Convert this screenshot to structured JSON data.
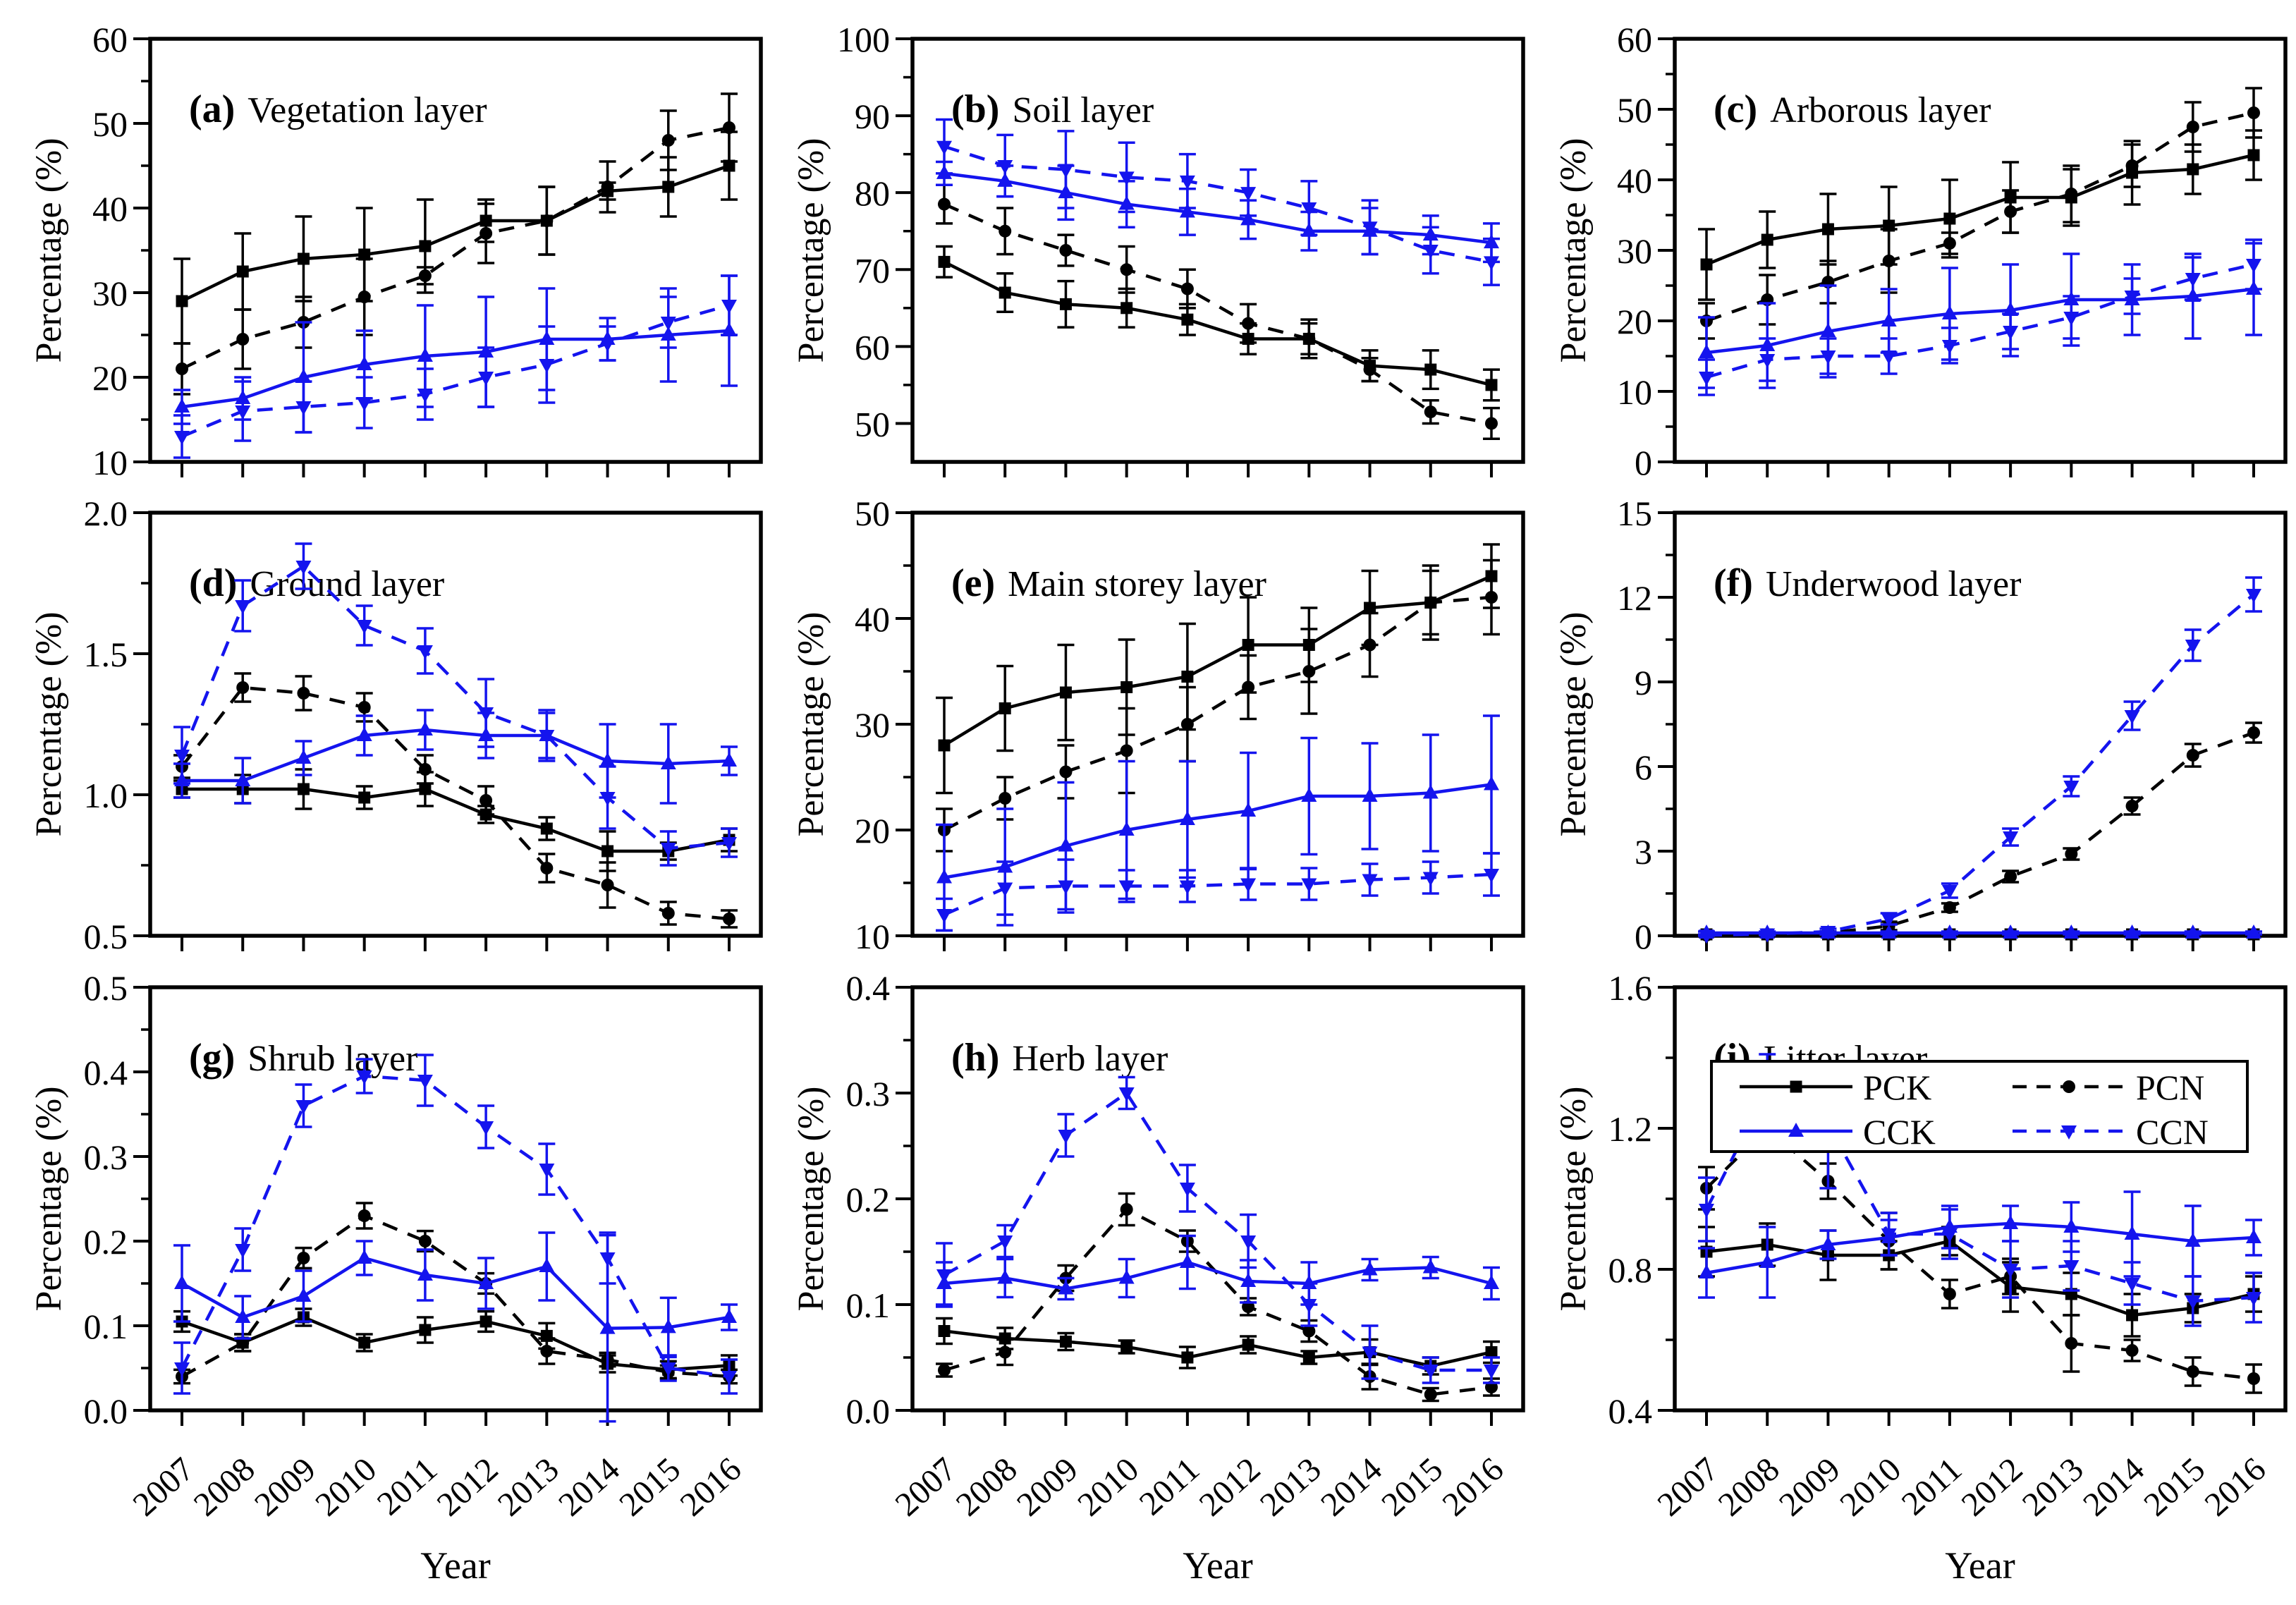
{
  "figure": {
    "x_axis_label": "Year",
    "y_axis_label": "Percentage  (%)",
    "colors": {
      "black": "#000000",
      "blue": "#1414ee",
      "background": "#ffffff"
    },
    "years": [
      2007,
      2008,
      2009,
      2010,
      2011,
      2012,
      2013,
      2014,
      2015,
      2016
    ],
    "series_meta": [
      {
        "key": "PCK",
        "label": "PCK",
        "color": "black",
        "dash": "solid",
        "marker": "square"
      },
      {
        "key": "PCN",
        "label": "PCN",
        "color": "black",
        "dash": "dashed",
        "marker": "circle"
      },
      {
        "key": "CCK",
        "label": "CCK",
        "color": "blue",
        "dash": "solid",
        "marker": "triangle-up"
      },
      {
        "key": "CCN",
        "label": "CCN",
        "color": "blue",
        "dash": "dashed",
        "marker": "triangle-down"
      }
    ],
    "legend": {
      "entries": [
        "PCK",
        "PCN",
        "CCK",
        "CCN"
      ],
      "location": "panel-i-top-right"
    }
  },
  "chart_data": [
    {
      "id": "a",
      "tag": "(a)",
      "title": "Vegetation layer",
      "type": "line",
      "ylim": [
        10,
        60
      ],
      "yticks": [
        10,
        20,
        30,
        40,
        50,
        60
      ],
      "ydecimals": 0,
      "series": {
        "PCK": {
          "values": [
            29,
            32.5,
            34,
            34.5,
            35.5,
            38.5,
            38.5,
            42,
            42.5,
            45
          ],
          "err": [
            5,
            4.5,
            5,
            5.5,
            5.5,
            2.5,
            4,
            1,
            3.5,
            4
          ]
        },
        "PCN": {
          "values": [
            21,
            24.5,
            26.5,
            29.5,
            32,
            37,
            38.5,
            42.5,
            48,
            49.5
          ],
          "err": [
            3,
            3.5,
            3,
            4.5,
            1,
            3.5,
            4,
            3,
            3.5,
            4
          ]
        },
        "CCK": {
          "values": [
            16.5,
            17.5,
            20,
            21.5,
            22.5,
            23,
            24.5,
            24.5,
            25,
            25.5
          ],
          "err": [
            2,
            2.5,
            6.5,
            4,
            6,
            6.5,
            6,
            2.5,
            5.5,
            6.5
          ]
        },
        "CCN": {
          "values": [
            13,
            16,
            16.5,
            17,
            18,
            20,
            21.5,
            24,
            26.5,
            28.5
          ],
          "err": [
            2.5,
            3.5,
            3,
            3,
            3,
            3.5,
            4.5,
            2,
            3,
            3.5
          ]
        }
      }
    },
    {
      "id": "b",
      "tag": "(b)",
      "title": "Soil layer",
      "type": "line",
      "ylim": [
        45,
        100
      ],
      "yticks": [
        50,
        60,
        70,
        80,
        90,
        100
      ],
      "ydecimals": 0,
      "series": {
        "PCK": {
          "values": [
            71,
            67,
            65.5,
            65,
            63.5,
            61,
            61,
            57.5,
            57,
            55
          ],
          "err": [
            2,
            2.5,
            3,
            2.5,
            2,
            2,
            2.5,
            2,
            2.5,
            2
          ]
        },
        "PCN": {
          "values": [
            78.5,
            75,
            72.5,
            70,
            67.5,
            63,
            61,
            57,
            51.5,
            50
          ],
          "err": [
            2.5,
            3,
            2,
            3,
            2.5,
            2.5,
            2,
            1.5,
            1.5,
            2
          ]
        },
        "CCK": {
          "values": [
            82.5,
            81.5,
            80,
            78.5,
            77.5,
            76.5,
            75,
            75,
            74.5,
            73.5
          ],
          "err": [
            1.5,
            2,
            3.5,
            3,
            3,
            2.5,
            2.5,
            3,
            2.5,
            2.5
          ]
        },
        "CCN": {
          "values": [
            86,
            83.5,
            83,
            82,
            81.5,
            80,
            78,
            75.5,
            72.5,
            71
          ],
          "err": [
            3.5,
            4,
            5,
            4.5,
            3.5,
            3,
            3.5,
            3.5,
            3,
            3
          ]
        }
      }
    },
    {
      "id": "c",
      "tag": "(c)",
      "title": "Arborous layer",
      "type": "line",
      "ylim": [
        0,
        60
      ],
      "yticks": [
        0,
        10,
        20,
        30,
        40,
        50,
        60
      ],
      "ydecimals": 0,
      "series": {
        "PCK": {
          "values": [
            28,
            31.5,
            33,
            33.5,
            34.5,
            37.5,
            37.5,
            41,
            41.5,
            43.5
          ],
          "err": [
            5,
            4,
            5,
            5.5,
            5.5,
            5,
            4,
            4.5,
            3.5,
            3.5
          ]
        },
        "PCN": {
          "values": [
            20,
            23,
            25.5,
            28.5,
            31,
            35.5,
            38,
            42,
            47.5,
            49.5
          ],
          "err": [
            2.5,
            3.5,
            3,
            4.5,
            1.5,
            3,
            4,
            3,
            3.5,
            3.5
          ]
        },
        "CCK": {
          "values": [
            15.5,
            16.5,
            18.5,
            20,
            21,
            21.5,
            23,
            23,
            23.5,
            24.5
          ],
          "err": [
            5,
            6,
            6.5,
            4.5,
            6.5,
            6.5,
            6.5,
            5,
            6,
            6.5
          ]
        },
        "CCN": {
          "values": [
            12,
            14.5,
            15,
            15,
            16.5,
            18.5,
            20.5,
            23.5,
            26,
            28
          ],
          "err": [
            2.5,
            3,
            2.5,
            2.5,
            2.5,
            2.5,
            3,
            2.5,
            3,
            3.5
          ]
        }
      }
    },
    {
      "id": "d",
      "tag": "(d)",
      "title": "Ground layer",
      "type": "line",
      "ylim": [
        0.5,
        2.0
      ],
      "yticks": [
        0.5,
        1.0,
        1.5,
        2.0
      ],
      "ydecimals": 1,
      "series": {
        "PCK": {
          "values": [
            1.02,
            1.02,
            1.02,
            0.99,
            1.02,
            0.93,
            0.88,
            0.8,
            0.8,
            0.84
          ],
          "err": [
            0.03,
            0.05,
            0.07,
            0.04,
            0.06,
            0.03,
            0.04,
            0.07,
            0.03,
            0.04
          ]
        },
        "PCN": {
          "values": [
            1.1,
            1.38,
            1.36,
            1.31,
            1.09,
            0.98,
            0.74,
            0.68,
            0.58,
            0.56
          ],
          "err": [
            0.04,
            0.05,
            0.06,
            0.05,
            0.05,
            0.05,
            0.05,
            0.08,
            0.04,
            0.03
          ]
        },
        "CCK": {
          "values": [
            1.05,
            1.05,
            1.13,
            1.21,
            1.23,
            1.21,
            1.21,
            1.12,
            1.11,
            1.12
          ],
          "err": [
            0.06,
            0.08,
            0.06,
            0.07,
            0.07,
            0.08,
            0.09,
            0.13,
            0.14,
            0.05
          ]
        },
        "CCN": {
          "values": [
            1.14,
            1.67,
            1.81,
            1.6,
            1.51,
            1.29,
            1.21,
            0.99,
            0.81,
            0.83
          ],
          "err": [
            0.1,
            0.09,
            0.08,
            0.07,
            0.08,
            0.12,
            0.08,
            0.11,
            0.06,
            0.05
          ]
        }
      }
    },
    {
      "id": "e",
      "tag": "(e)",
      "title": "Main storey layer",
      "type": "line",
      "ylim": [
        10,
        50
      ],
      "yticks": [
        10,
        20,
        30,
        40,
        50
      ],
      "ydecimals": 0,
      "series": {
        "PCK": {
          "values": [
            28,
            31.5,
            33,
            33.5,
            34.5,
            37.5,
            37.5,
            41,
            41.5,
            44
          ],
          "err": [
            4.5,
            4,
            4.5,
            4.5,
            5,
            4.5,
            3.5,
            3.5,
            3,
            3
          ]
        },
        "PCN": {
          "values": [
            20,
            23,
            25.5,
            27.5,
            30,
            33.5,
            35,
            37.5,
            41.5,
            42
          ],
          "err": [
            2,
            2,
            2.5,
            4,
            3.5,
            3,
            4,
            3,
            3.5,
            3.5
          ]
        },
        "CCK": {
          "values": [
            15.5,
            16.5,
            18.5,
            20,
            21,
            21.8,
            23.2,
            23.2,
            23.5,
            24.3
          ],
          "err": [
            5,
            5.5,
            6,
            6.5,
            5.5,
            5.5,
            5.5,
            5,
            5.5,
            6.5
          ]
        },
        "CCN": {
          "values": [
            12,
            14.5,
            14.7,
            14.7,
            14.7,
            14.9,
            14.9,
            15.3,
            15.5,
            15.8
          ],
          "err": [
            1.5,
            2.5,
            2.5,
            1.5,
            1.5,
            1.5,
            1.5,
            1.5,
            1.5,
            2
          ]
        }
      }
    },
    {
      "id": "f",
      "tag": "(f)",
      "title": "Underwood layer",
      "type": "line",
      "ylim": [
        0,
        15
      ],
      "yticks": [
        0,
        3,
        6,
        9,
        12,
        15
      ],
      "ydecimals": 0,
      "series": {
        "PCK": {
          "values": [
            0.05,
            0.05,
            0.05,
            0.05,
            0.05,
            0.05,
            0.05,
            0.05,
            0.05,
            0.05
          ],
          "err": [
            0,
            0,
            0,
            0,
            0,
            0,
            0,
            0,
            0,
            0
          ]
        },
        "PCN": {
          "values": [
            0.02,
            0.05,
            0.1,
            0.35,
            1.0,
            2.1,
            2.9,
            4.6,
            6.4,
            7.2
          ],
          "err": [
            0.02,
            0.03,
            0.05,
            0.15,
            0.15,
            0.2,
            0.2,
            0.3,
            0.4,
            0.35
          ]
        },
        "CCK": {
          "values": [
            0.1,
            0.1,
            0.1,
            0.1,
            0.1,
            0.1,
            0.1,
            0.1,
            0.1,
            0.1
          ],
          "err": [
            0.05,
            0.05,
            0.05,
            0.05,
            0.05,
            0.05,
            0.05,
            0.05,
            0.05,
            0.05
          ]
        },
        "CCN": {
          "values": [
            0.02,
            0.06,
            0.15,
            0.6,
            1.6,
            3.5,
            5.3,
            7.8,
            10.3,
            12.1
          ],
          "err": [
            0.02,
            0.04,
            0.1,
            0.2,
            0.25,
            0.3,
            0.35,
            0.5,
            0.55,
            0.6
          ]
        }
      }
    },
    {
      "id": "g",
      "tag": "(g)",
      "title": "Shrub layer",
      "type": "line",
      "ylim": [
        0,
        0.5
      ],
      "yticks": [
        0,
        0.1,
        0.2,
        0.3,
        0.4,
        0.5
      ],
      "ydecimals": 1,
      "series": {
        "PCK": {
          "values": [
            0.105,
            0.08,
            0.11,
            0.08,
            0.095,
            0.105,
            0.088,
            0.055,
            0.048,
            0.053
          ],
          "err": [
            0.012,
            0.01,
            0.01,
            0.01,
            0.015,
            0.012,
            0.015,
            0.01,
            0.01,
            0.012
          ]
        },
        "PCN": {
          "values": [
            0.04,
            0.08,
            0.18,
            0.23,
            0.2,
            0.15,
            0.07,
            0.06,
            0.045,
            0.04
          ],
          "err": [
            0.008,
            0.01,
            0.012,
            0.015,
            0.012,
            0.012,
            0.015,
            0.008,
            0.008,
            0.008
          ]
        },
        "CCK": {
          "values": [
            0.15,
            0.11,
            0.135,
            0.18,
            0.16,
            0.15,
            0.17,
            0.097,
            0.098,
            0.11
          ],
          "err": [
            0.045,
            0.025,
            0.03,
            0.02,
            0.03,
            0.03,
            0.04,
            0.11,
            0.035,
            0.015
          ]
        },
        "CCN": {
          "values": [
            0.05,
            0.19,
            0.36,
            0.395,
            0.39,
            0.335,
            0.285,
            0.18,
            0.05,
            0.04
          ],
          "err": [
            0.03,
            0.025,
            0.025,
            0.02,
            0.03,
            0.025,
            0.03,
            0.03,
            0.015,
            0.02
          ]
        }
      }
    },
    {
      "id": "h",
      "tag": "(h)",
      "title": "Herb layer",
      "type": "line",
      "ylim": [
        0,
        0.4
      ],
      "yticks": [
        0,
        0.1,
        0.2,
        0.3,
        0.4
      ],
      "ydecimals": 1,
      "series": {
        "PCK": {
          "values": [
            0.075,
            0.068,
            0.065,
            0.06,
            0.05,
            0.062,
            0.05,
            0.055,
            0.042,
            0.055
          ],
          "err": [
            0.012,
            0.01,
            0.008,
            0.006,
            0.01,
            0.008,
            0.006,
            0.012,
            0.008,
            0.01
          ]
        },
        "PCN": {
          "values": [
            0.038,
            0.055,
            0.125,
            0.19,
            0.16,
            0.098,
            0.075,
            0.032,
            0.015,
            0.022
          ],
          "err": [
            0.006,
            0.012,
            0.012,
            0.015,
            0.01,
            0.008,
            0.01,
            0.012,
            0.006,
            0.008
          ]
        },
        "CCK": {
          "values": [
            0.12,
            0.125,
            0.115,
            0.125,
            0.14,
            0.122,
            0.12,
            0.133,
            0.135,
            0.12
          ],
          "err": [
            0.02,
            0.018,
            0.01,
            0.018,
            0.025,
            0.02,
            0.02,
            0.01,
            0.01,
            0.015
          ]
        },
        "CCN": {
          "values": [
            0.128,
            0.16,
            0.26,
            0.3,
            0.21,
            0.16,
            0.1,
            0.055,
            0.038,
            0.038
          ],
          "err": [
            0.03,
            0.015,
            0.02,
            0.015,
            0.022,
            0.025,
            0.02,
            0.025,
            0.012,
            0.012
          ]
        }
      }
    },
    {
      "id": "i",
      "tag": "(i)",
      "title": "Litter layer",
      "type": "line",
      "ylim": [
        0.4,
        1.6
      ],
      "yticks": [
        0.4,
        0.8,
        1.2,
        1.6
      ],
      "ydecimals": 1,
      "series": {
        "PCK": {
          "values": [
            0.85,
            0.87,
            0.84,
            0.84,
            0.88,
            0.75,
            0.73,
            0.67,
            0.69,
            0.73
          ],
          "err": [
            0.07,
            0.06,
            0.07,
            0.04,
            0.04,
            0.07,
            0.06,
            0.06,
            0.04,
            0.05
          ]
        },
        "PCN": {
          "values": [
            1.03,
            1.2,
            1.05,
            0.88,
            0.73,
            0.78,
            0.59,
            0.57,
            0.51,
            0.49
          ],
          "err": [
            0.06,
            0.05,
            0.05,
            0.08,
            0.04,
            0.05,
            0.08,
            0.03,
            0.04,
            0.04
          ]
        },
        "CCK": {
          "values": [
            0.79,
            0.82,
            0.87,
            0.89,
            0.92,
            0.93,
            0.92,
            0.9,
            0.88,
            0.89
          ],
          "err": [
            0.07,
            0.1,
            0.04,
            0.05,
            0.06,
            0.05,
            0.07,
            0.12,
            0.1,
            0.05
          ]
        },
        "CCN": {
          "values": [
            0.97,
            1.31,
            1.21,
            0.9,
            0.9,
            0.8,
            0.81,
            0.76,
            0.71,
            0.72
          ],
          "err": [
            0.09,
            0.1,
            0.18,
            0.06,
            0.07,
            0.08,
            0.07,
            0.06,
            0.07,
            0.07
          ]
        }
      }
    }
  ]
}
